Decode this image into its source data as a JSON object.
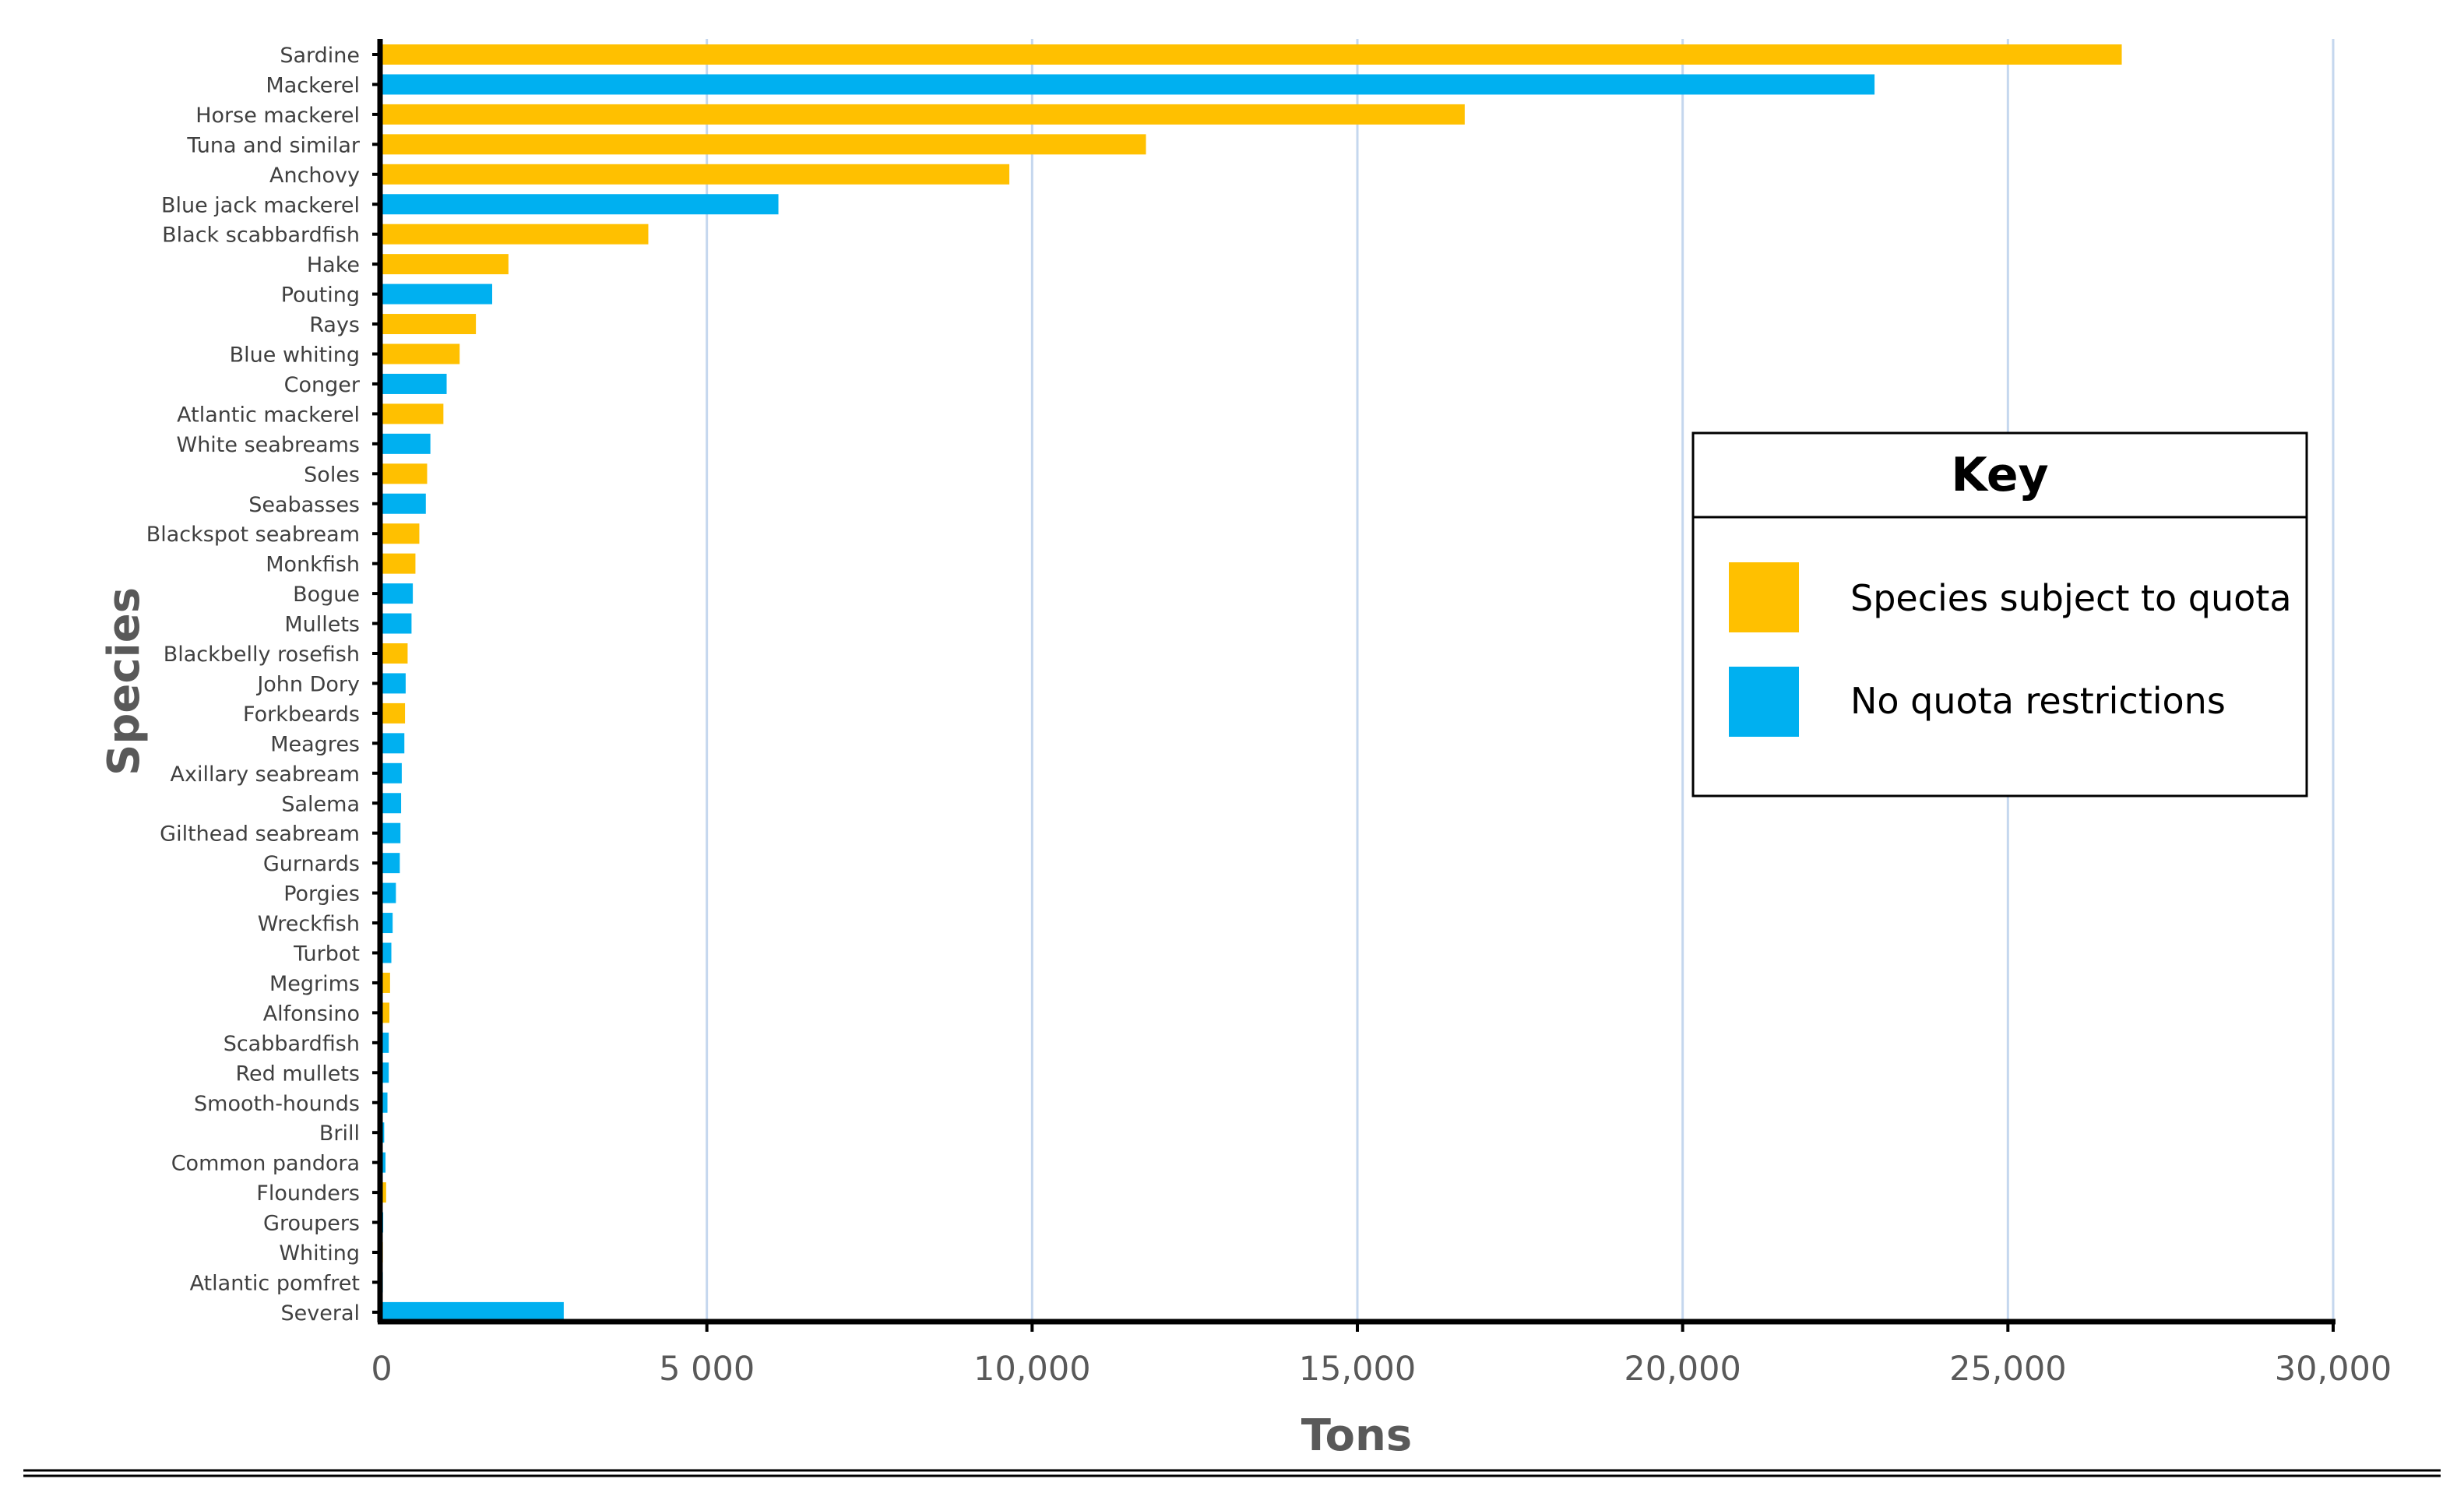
{
  "chart_data": {
    "type": "bar",
    "orientation": "horizontal",
    "title": "",
    "xlabel": "Tons",
    "ylabel": "Species",
    "xlim": [
      0,
      30000
    ],
    "xticks": [
      0,
      5000,
      10000,
      15000,
      20000,
      25000,
      30000
    ],
    "xtick_labels": [
      "0",
      "5 000",
      "10,000",
      "15,000",
      "20,000",
      "25,000",
      "30,000"
    ],
    "grid": "vertical",
    "colors": {
      "quota": "#FFC000",
      "no_quota": "#00B0F0",
      "grid": "#C5D7EE",
      "axis": "#000000"
    },
    "legend": {
      "title": "Key",
      "position": "right",
      "entries": [
        {
          "label": "Species subject to quota",
          "group": "quota"
        },
        {
          "label": "No quota restrictions",
          "group": "no_quota"
        }
      ]
    },
    "bars": [
      {
        "species": "Sardine",
        "value": 26750,
        "group": "quota"
      },
      {
        "species": "Mackerel",
        "value": 22950,
        "group": "no_quota"
      },
      {
        "species": "Horse mackerel",
        "value": 16650,
        "group": "quota"
      },
      {
        "species": "Tuna and similar",
        "value": 11750,
        "group": "quota"
      },
      {
        "species": "Anchovy",
        "value": 9650,
        "group": "quota"
      },
      {
        "species": "Blue jack mackerel",
        "value": 6100,
        "group": "no_quota"
      },
      {
        "species": "Black scabbardfish",
        "value": 4100,
        "group": "quota"
      },
      {
        "species": "Hake",
        "value": 1950,
        "group": "quota"
      },
      {
        "species": "Pouting",
        "value": 1700,
        "group": "no_quota"
      },
      {
        "species": "Rays",
        "value": 1450,
        "group": "quota"
      },
      {
        "species": "Blue whiting",
        "value": 1200,
        "group": "quota"
      },
      {
        "species": "Conger",
        "value": 1000,
        "group": "no_quota"
      },
      {
        "species": "Atlantic mackerel",
        "value": 950,
        "group": "quota"
      },
      {
        "species": "White seabreams",
        "value": 750,
        "group": "no_quota"
      },
      {
        "species": "Soles",
        "value": 700,
        "group": "quota"
      },
      {
        "species": "Seabasses",
        "value": 680,
        "group": "no_quota"
      },
      {
        "species": "Blackspot seabream",
        "value": 580,
        "group": "quota"
      },
      {
        "species": "Monkfish",
        "value": 520,
        "group": "quota"
      },
      {
        "species": "Bogue",
        "value": 480,
        "group": "no_quota"
      },
      {
        "species": "Mullets",
        "value": 460,
        "group": "no_quota"
      },
      {
        "species": "Blackbelly rosefish",
        "value": 400,
        "group": "quota"
      },
      {
        "species": "John Dory",
        "value": 370,
        "group": "no_quota"
      },
      {
        "species": "Forkbeards",
        "value": 360,
        "group": "quota"
      },
      {
        "species": "Meagres",
        "value": 350,
        "group": "no_quota"
      },
      {
        "species": "Axillary seabream",
        "value": 310,
        "group": "no_quota"
      },
      {
        "species": "Salema",
        "value": 300,
        "group": "no_quota"
      },
      {
        "species": "Gilthead seabream",
        "value": 290,
        "group": "no_quota"
      },
      {
        "species": "Gurnards",
        "value": 280,
        "group": "no_quota"
      },
      {
        "species": "Porgies",
        "value": 220,
        "group": "no_quota"
      },
      {
        "species": "Wreckfish",
        "value": 170,
        "group": "no_quota"
      },
      {
        "species": "Turbot",
        "value": 150,
        "group": "no_quota"
      },
      {
        "species": "Megrims",
        "value": 130,
        "group": "quota"
      },
      {
        "species": "Alfonsino",
        "value": 120,
        "group": "quota"
      },
      {
        "species": "Scabbardfish",
        "value": 110,
        "group": "no_quota"
      },
      {
        "species": "Red mullets",
        "value": 110,
        "group": "no_quota"
      },
      {
        "species": "Smooth-hounds",
        "value": 90,
        "group": "no_quota"
      },
      {
        "species": "Brill",
        "value": 40,
        "group": "no_quota"
      },
      {
        "species": "Common pandora",
        "value": 60,
        "group": "no_quota"
      },
      {
        "species": "Flounders",
        "value": 70,
        "group": "quota"
      },
      {
        "species": "Groupers",
        "value": 25,
        "group": "no_quota"
      },
      {
        "species": "Whiting",
        "value": 20,
        "group": "quota"
      },
      {
        "species": "Atlantic pomfret",
        "value": 20,
        "group": "no_quota"
      },
      {
        "species": "Several",
        "value": 2800,
        "group": "no_quota"
      }
    ]
  }
}
